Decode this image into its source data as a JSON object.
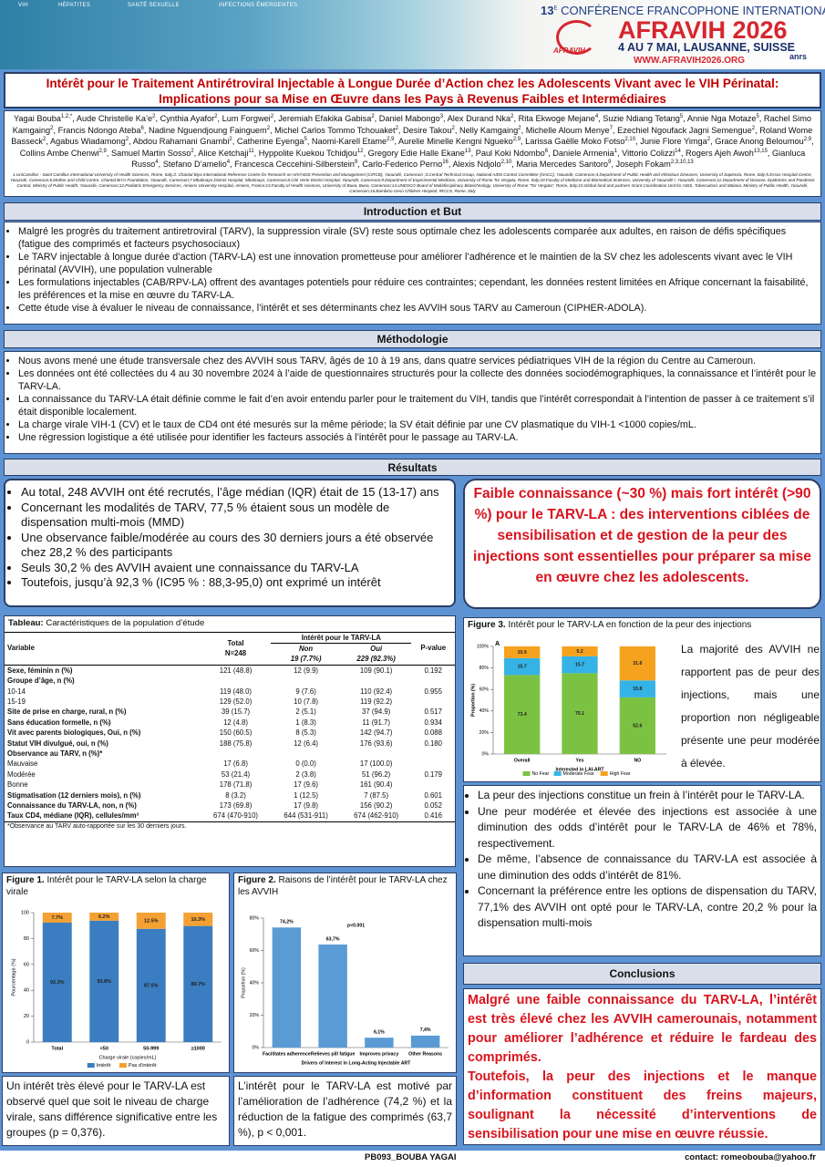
{
  "header": {
    "nav": [
      "VIH",
      "HÉPATITES",
      "SANTÉ SEXUELLE",
      "INFECTIONS ÉMERGENTES"
    ],
    "conference_number": "13",
    "conference_sup": "E",
    "conference": "CONFÉRENCE FRANCOPHONE INTERNATIONALE",
    "name": "AFRAVIH 2026",
    "dates": "4 AU 7 MAI, LAUSANNE, SUISSE",
    "url": "WWW.AFRAVIH2026.ORG",
    "logo": "AFRAVIH",
    "partner": "anrs"
  },
  "title": "Intérêt pour le Traitement Antirétroviral Injectable à Longue Durée d’Action chez les Adolescents Vivant avec le VIH Périnatal:  Implications pour sa Mise en Œuvre dans les Pays à Revenus Faibles et Intermédiaires",
  "authors": {
    "names": [
      "Yagai Bouba",
      "Aude Christelle Ka’e",
      "Cynthia Ayafor",
      "Lum Forgwei",
      "Jeremiah Efakika Gabisa",
      "Daniel Mabongo",
      "Alex Durand Nka",
      "Rita Ekwoge Mejane",
      "Suzie Ndiang Tetang",
      "Annie Nga Motaze",
      "Rachel Simo Kamgaing",
      "Francis Ndongo Ateba",
      "Nadine Nguendjoung Fainguem",
      "Michel Carlos Tommo Tchouaket",
      "Desire Takou",
      "Nelly Kamgaing",
      "Michelle Aloum Menye",
      "Ezechiel Ngoufack Jagni Semengue",
      "Roland Wome Basseck",
      "Agabus Wiadamong",
      "Abdou Rahamani Gnambi",
      "Catherine Eyenga",
      "Naomi-Karell Etame",
      "Aurelie Minelle Kengni Ngueko",
      "Larissa Gaëlle Moko Fotso",
      "Junie Flore Yimga",
      "Grace Anong Beloumou",
      "Collins Ambe Chenwi",
      "Samuel Martin Sosso",
      "Alice Ketchaji",
      "Hyppolite Kuekou Tchidjou",
      "Gregory Edie Halle Ekane",
      "Paul Koki Ndombo",
      "Daniele Armenia",
      "Vittorio Colizzi",
      "Rogers Ajeh Awoh",
      "Gianluca Russo",
      "Stefano D’amelio",
      "Francesca Ceccehini-Silberstein",
      "Carlo-Federico Perno",
      "Alexis Ndjolo",
      "Maria Mercedes Santoro",
      "Joseph Fokam"
    ],
    "affiliations": [
      "1,2,*",
      "2",
      "2",
      "2",
      "2",
      "3",
      "2",
      "4",
      "5",
      "5",
      "2",
      "6",
      "2",
      "2",
      "2",
      "2",
      "7",
      "2",
      "2",
      "2",
      "2",
      "5",
      "2,9",
      "2,9",
      "2,10",
      "2",
      "2,9",
      "2,9",
      "2",
      "11",
      "12",
      "13",
      "6",
      "1",
      "14",
      "13,15",
      "4",
      "4",
      "9",
      "16",
      "2,10",
      "9",
      "2,3,10,13"
    ]
  },
  "affiliations": "1.UniCamillus - Saint Camillus International University of Health Sciences, Rome, Italy;2. Chantal Biya International Reference Centre for Research on HIV/AIDS Prevention and Management (CIRCB), Yaoundé, Cameroon ;3.Central Technical Group, National AIDS Control Committee (NACC), Yaoundé, Cameroon;4.Department of Public Health and Infectious Diseases, University of Sapienza, Rome, Italy;5.Essos Hospital Centre, Yaoundé, Cameroon;6.Mother and Child Centre, Chantal BIYA Foundation, Yaoundé, Cameroon;7.Mbalmayo District Hospital, Mbalmayo, Cameroon;8.Cité Verte District Hospital, Yaoundé, Cameroon;9.Department of Experimental Medicine, University of Rome Tor Vergata, Rome, Italy;10.Faculty of Medicine and Biomedical Sciences, University of Yaoundé I, Yaoundé, Cameroon;11.Department of Disease, Epidemics and Pandemic Control, Ministry of Public Health, Yaoundé, Cameroon;12.Pediatric Emergency Services, Amiens University Hospital, Amiens, France;13.Faculty of Health sciences, University of Buea, Buea, Cameroon;14.UNESCO Board of Multidisciplinary Biotechnology, University of Rome “Tor Vergata”, Rome, Italy;15.Global fund and partners Grant Coordination Unit for AIDS, Tuberculosis and Malaria, Ministry of Public Health, Yaoundé, Cameroon;16.Bambino Gesù Children Hospital, IRCCS, Rome, Italy",
  "intro": {
    "heading": "Introduction et But",
    "bullets": [
      "Malgré les progrès du traitement antiretroviral (TARV), la suppression virale (SV) reste sous optimale chez les adolescents comparée aux adultes, en raison de défis spécifiques (fatigue des comprimés et facteurs psychosociaux)",
      "Le TARV injectable à longue durée d’action (TARV-LA) est une innovation prometteuse pour améliorer l’adhérence et le maintien de la SV chez les adolescents vivant avec le VIH périnatal (AVVIH), une population vulnerable",
      "Les formulations injectables (CAB/RPV-LA) offrent des avantages potentiels pour réduire ces contraintes; cependant, les données restent limitées en Afrique concernant la faisabilité, les préférences et la mise en œuvre du TARV-LA.",
      "Cette étude vise à évaluer le niveau de connaissance, l’intérêt et ses déterminants chez les AVVIH sous TARV au Cameroun (CIPHER-ADOLA)."
    ]
  },
  "methods": {
    "heading": "Méthodologie",
    "bullets": [
      "Nous avons mené une étude transversale chez des AVVIH sous TARV, âgés de 10 à 19 ans, dans quatre services pédiatriques VIH de la région du Centre au Cameroun.",
      "Les données ont été collectées du 4 au 30 novembre 2024 à l’aide de questionnaires structurés pour la collecte des données sociodémographiques, la connaissance et l’intérêt pour le TARV-LA.",
      "La connaissance du TARV-LA  était définie comme le fait d’en avoir entendu parler pour le traitement du VIH, tandis que l’intérêt correspondait à l’intention de passer à ce traitement s’il était disponible localement.",
      "La charge virale VIH-1 (CV) et le taux de CD4 ont été mesurés sur la même période; la SV était définie par une CV plasmatique du VIH-1 <1000 copies/mL.",
      "Une régression logistique a été utilisée pour identifier les facteurs associés à l’intérêt pour le passage au TARV-LA."
    ]
  },
  "results": {
    "heading": "Résultats",
    "bullets": [
      "Au total, 248 AVVIH ont été recrutés, l’âge médian (IQR) était de  15 (13-17) ans",
      "Concernant les modalités de TARV, 77,5 % étaient sous un modèle de dispensation multi-mois (MMD)",
      "Une observance faible/modérée au cours des 30 derniers jours a été observée chez 28,2 % des participants",
      "Seuls 30,2 % des AVVIH avaient une connaissance du TARV-LA",
      "Toutefois, jusqu’à 92,3 % (IC95 % : 88,3-95,0) ont exprimé un intérêt"
    ],
    "highlight": "Faible connaissance (~30 %) mais fort intérêt (>90 %) pour le TARV-LA : des interventions ciblées de sensibilisation et de gestion de la peur des injections sont essentielles pour préparer sa mise en œuvre chez les adolescents."
  },
  "table": {
    "caption_label": "Tableau:",
    "caption": "Caractéristiques de la population d’étude",
    "header": {
      "variable": "Variable",
      "total": "Total",
      "total_n": "N=248",
      "group": "Intérêt pour le TARV-LA",
      "non": "Non",
      "oui": "Oui",
      "non_n": "19 (7.7%)",
      "oui_n": "229 (92.3%)",
      "p": "P-value"
    },
    "rows": [
      {
        "label": "Sexe, féminin n (%)",
        "bold": true,
        "total": "121 (48.8)",
        "non": "12 (9.9)",
        "oui": "109 (90.1)",
        "p": "0.192"
      },
      {
        "label": "Groupe d’âge, n (%)",
        "bold": true
      },
      {
        "label": "10-14",
        "total": "119 (48.0)",
        "non": "9 (7.6)",
        "oui": "110 (92.4)",
        "p": "0.955"
      },
      {
        "label": "15-19",
        "total": "129 (52.0)",
        "non": "10 (7.8)",
        "oui": "119 (92.2)"
      },
      {
        "label": "Site de prise en charge, rural, n (%)",
        "bold": true,
        "total": "39 (15.7)",
        "non": "2 (5.1)",
        "oui": "37 (94.9)",
        "p": "0.517"
      },
      {
        "label": "Sans éducation formelle, n (%)",
        "bold": true,
        "total": "12 (4.8)",
        "non": "1 (8.3)",
        "oui": "11 (91.7)",
        "p": "0.934"
      },
      {
        "label": "Vit avec parents biologiques, Oui, n (%)",
        "bold": true,
        "total": "150 (60.5)",
        "non": "8 (5.3)",
        "oui": "142 (94.7)",
        "p": "0.088"
      },
      {
        "label": "Statut VIH divulgué, oui, n (%)",
        "bold": true,
        "total": "188 (75.8)",
        "non": "12 (6.4)",
        "oui": "176 (93.6)",
        "p": "0.180"
      },
      {
        "label": "Observance au TARV, n (%)*",
        "bold": true
      },
      {
        "label": "Mauvaise",
        "total": "17 (6.8)",
        "non": "0 (0.0)",
        "oui": "17 (100.0)"
      },
      {
        "label": "Modérée",
        "total": "53 (21.4)",
        "non": "2 (3.8)",
        "oui": "51 (96.2)",
        "p": "0.179"
      },
      {
        "label": "Bonne",
        "total": "178 (71.8)",
        "non": "17 (9.6)",
        "oui": "161 (90.4)"
      },
      {
        "label": "Stigmatisation (12 derniers mois), n (%)",
        "bold": true,
        "total": "8 (3.2)",
        "non": "1 (12.5)",
        "oui": "7 (87.5)",
        "p": "0.601"
      },
      {
        "label": "Connaissance du TARV-LA, non, n (%)",
        "bold": true,
        "total": "173 (69.8)",
        "non": "17 (9.8)",
        "oui": "156 (90.2)",
        "p": "0.052"
      },
      {
        "label": "Taux CD4, médiane (IQR), cellules/mm³",
        "bold": true,
        "total": "674 (470-910)",
        "non": "644 (531-911)",
        "oui": "674 (462-910)",
        "p": "0.416"
      }
    ],
    "footnote": "*Observance au TARV auto-rapportée sur les 30 derniers jours."
  },
  "figure1": {
    "caption_label": "Figure 1.",
    "caption": "Intérêt pour le TARV-LA selon la charge virale",
    "type": "bar",
    "stacked": true,
    "categories": [
      "Total",
      "<50",
      "50-999",
      "≥1000"
    ],
    "series": [
      {
        "name": "Intérêt",
        "color": "#3a7dc0",
        "values": [
          92.3,
          93.8,
          87.5,
          89.7
        ],
        "value_labels": [
          "92.3%",
          "93.8%",
          "87.5%",
          "89.7%"
        ]
      },
      {
        "name": "Pas d’intérêt",
        "color": "#f5a032",
        "values": [
          7.7,
          6.2,
          12.5,
          10.3
        ],
        "value_labels": [
          "7.7%",
          "6.2%",
          "12.5%",
          "10.3%"
        ]
      }
    ],
    "ylim": [
      0,
      100
    ],
    "yticks": [
      0,
      20,
      40,
      60,
      80,
      100
    ],
    "ylabel": "Pourcentage (%)",
    "xlabel": "Charge virale (copies/mL)",
    "legend": "bottom",
    "text": "Un intérêt très élevé pour le TARV-LA est observé quel que soit le niveau de charge virale, sans différence significative entre les groupes (p = 0,376)."
  },
  "figure2": {
    "caption_label": "Figure 2.",
    "caption": "Raisons de l’intérêt pour le TARV-LA chez les AVVIH",
    "type": "bar",
    "categories": [
      "Facilitates adherence",
      "Relieves pill fatigue",
      "Improves privacy",
      "Other Reasons"
    ],
    "values": [
      74.2,
      63.7,
      6.1,
      7.4
    ],
    "value_labels": [
      "74,2%",
      "63,7%",
      "6,1%",
      "7,4%"
    ],
    "color": "#5b9bd5",
    "ylim": [
      0,
      80
    ],
    "yticks": [
      {
        "value": 0,
        "label": "0%"
      },
      {
        "value": 20,
        "label": "20%"
      },
      {
        "value": 40,
        "label": "40%"
      },
      {
        "value": 60,
        "label": "60%"
      },
      {
        "value": 80,
        "label": "80%"
      }
    ],
    "ylabel": "Proportion (%)",
    "xlabel": "Drivers of Interest in Long-Acting Injectable ART",
    "annotation": "p<0.001",
    "text": "L’intérêt pour le TARV-LA est motivé par l’amélioration de l’adhérence (74,2 %) et la réduction de la fatigue des comprimés (63,7 %),  p < 0,001."
  },
  "figure3": {
    "caption_label": "Figure 3.",
    "caption": "Intérêt pour le TARV-LA en fonction de la peur des injections",
    "type": "bar",
    "stacked": true,
    "panel": "A",
    "categories": [
      "Overall",
      "Yes",
      "NO"
    ],
    "series": [
      {
        "name": "No Fear",
        "color": "#7cc242",
        "values": [
          73.4,
          75.1,
          52.6
        ]
      },
      {
        "name": "Moderate Fear",
        "color": "#35b3e6",
        "values": [
          15.7,
          15.7,
          15.8
        ]
      },
      {
        "name": "High Fear",
        "color": "#f5a21f",
        "values": [
          10.9,
          9.2,
          31.6
        ]
      }
    ],
    "ylim": [
      0,
      100
    ],
    "yticks": [
      {
        "value": 0,
        "label": "0%"
      },
      {
        "value": 20,
        "label": "20%"
      },
      {
        "value": 40,
        "label": "40%"
      },
      {
        "value": 60,
        "label": "60%"
      },
      {
        "value": 80,
        "label": "80%"
      },
      {
        "value": 100,
        "label": "100%"
      }
    ],
    "ylabel": "Proportion (%)",
    "xlabel": "Interested in LAI-ART",
    "legend": "bottom",
    "text": "La majorité des AVVIH ne rapportent pas de peur des injections, mais une proportion non négligeable présente une peur modérée à élevée."
  },
  "results_right": [
    "La peur des injections constitue un frein à l’intérêt pour le TARV-LA.",
    "Une peur modérée et élevée des injections est associée à une diminution des odds d’intérêt pour le TARV-LA de 46% et 78%, respectivement.",
    "De même, l’absence de connaissance du TARV-LA est associée à une diminution des odds d’intérêt de 81%.",
    "Concernant la préférence entre les options de dispensation du TARV, 77,1% des AVVIH ont opté pour le TARV-LA, contre 20,2 % pour la dispensation multi-mois"
  ],
  "conclusions": {
    "heading": "Conclusions",
    "paragraphs": [
      "Malgré une faible connaissance du TARV-LA, l’intérêt est très élevé chez les AVVIH camerounais, notamment pour améliorer l’adhérence et réduire le fardeau des comprimés.",
      "Toutefois, la peur des injections et le manque d’information constituent des freins majeurs, soulignant la nécessité d’interventions de sensibilisation pour une mise en œuvre réussie."
    ]
  },
  "footer": {
    "id": "PB093_BOUBA YAGAI",
    "contact": "contact: romeobouba@yahoo.fr"
  }
}
